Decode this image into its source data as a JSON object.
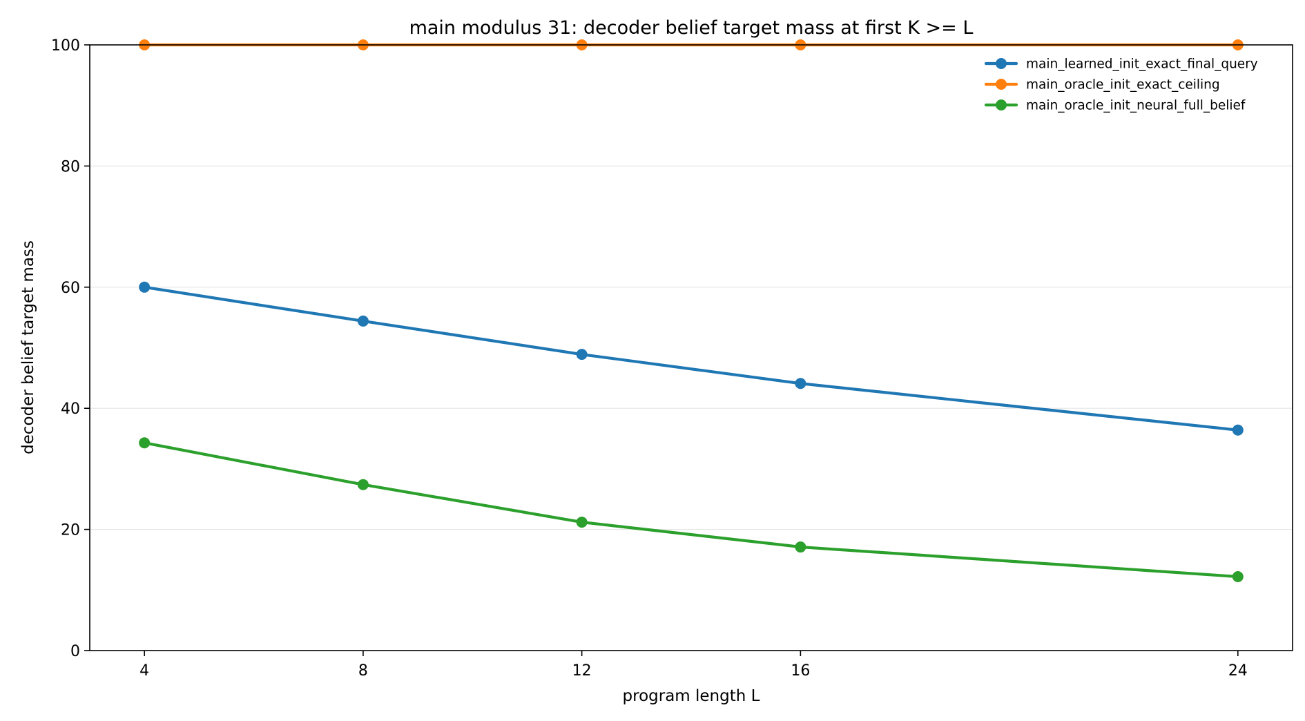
{
  "chart_data": {
    "type": "line",
    "title": "main modulus 31: decoder belief target mass at first K >= L",
    "xlabel": "program length L",
    "ylabel": "decoder belief target mass",
    "x": [
      4,
      8,
      12,
      16,
      24
    ],
    "x_ticks": [
      "4",
      "8",
      "12",
      "16",
      "24"
    ],
    "xlim": [
      3,
      25
    ],
    "ylim": [
      0,
      100
    ],
    "y_ticks": [
      "0",
      "20",
      "40",
      "60",
      "80",
      "100"
    ],
    "grid": "horizontal",
    "legend_position": "top-right",
    "series": [
      {
        "name": "main_learned_init_exact_final_query",
        "color": "#1f77b4",
        "values": [
          60.0,
          54.4,
          48.9,
          44.1,
          36.4
        ]
      },
      {
        "name": "main_oracle_init_exact_ceiling",
        "color": "#ff7f0e",
        "values": [
          100,
          100,
          100,
          100,
          100
        ]
      },
      {
        "name": "main_oracle_init_neural_full_belief",
        "color": "#2ca02c",
        "values": [
          34.3,
          27.4,
          21.2,
          17.1,
          12.2
        ]
      }
    ]
  }
}
